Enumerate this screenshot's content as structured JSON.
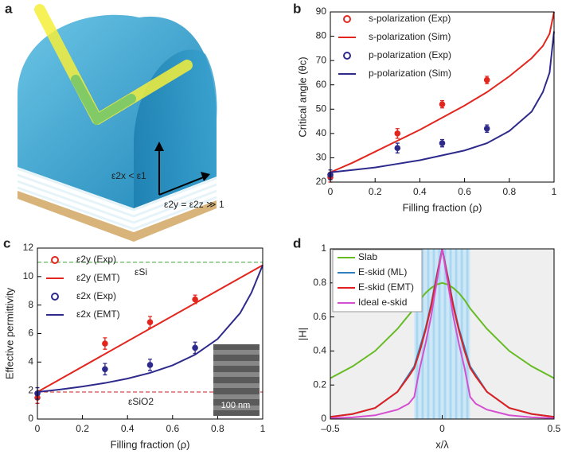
{
  "illustration": {
    "panel": "a",
    "labels": [
      "ε2x < ε1",
      "ε2y = ε2z ≫ 1"
    ]
  },
  "chart_data": [
    {
      "panel": "b",
      "type": "line",
      "xlabel": "Filling fraction (ρ)",
      "ylabel": "Critical angle (θc)",
      "xlim": [
        0,
        1
      ],
      "ylim": [
        20,
        90
      ],
      "xticks": [
        0,
        0.2,
        0.4,
        0.6,
        0.8,
        1
      ],
      "yticks": [
        20,
        30,
        40,
        50,
        60,
        70,
        80,
        90
      ],
      "legend": "upper left",
      "series": [
        {
          "name": "s-polarization (Exp)",
          "kind": "points",
          "color": "#e3261d",
          "x": [
            0,
            0.3,
            0.5,
            0.7
          ],
          "values": [
            22,
            40,
            52,
            62
          ],
          "errors": [
            2,
            2,
            1.5,
            1.5
          ]
        },
        {
          "name": "s-polarization (Sim)",
          "kind": "curve",
          "color": "#e3261d",
          "x": [
            0,
            0.1,
            0.2,
            0.3,
            0.4,
            0.5,
            0.6,
            0.7,
            0.8,
            0.9,
            0.95,
            0.98,
            1
          ],
          "values": [
            24,
            28,
            32.5,
            37,
            41.5,
            46.5,
            51.5,
            57,
            63.5,
            71,
            76,
            81,
            90
          ]
        },
        {
          "name": "p-polarization (Exp)",
          "kind": "points",
          "color": "#2e2a8c",
          "x": [
            0,
            0.3,
            0.5,
            0.7
          ],
          "values": [
            23,
            34,
            36,
            42
          ],
          "errors": [
            2,
            2,
            1.5,
            1.5
          ]
        },
        {
          "name": "p-polarization (Sim)",
          "kind": "curve",
          "color": "#2e2a8c",
          "x": [
            0,
            0.1,
            0.2,
            0.3,
            0.4,
            0.5,
            0.6,
            0.7,
            0.8,
            0.9,
            0.95,
            0.98,
            1
          ],
          "values": [
            24,
            25,
            26,
            27.5,
            29,
            31,
            33,
            36,
            41,
            49,
            57,
            65,
            82
          ]
        }
      ]
    },
    {
      "panel": "c",
      "type": "line",
      "xlabel": "Filling fraction (ρ)",
      "ylabel": "Effective permittivity",
      "xlim": [
        0,
        1
      ],
      "ylim": [
        0,
        12
      ],
      "xticks": [
        0,
        0.2,
        0.4,
        0.6,
        0.8,
        1
      ],
      "yticks": [
        0,
        2,
        4,
        6,
        8,
        10,
        12
      ],
      "legend": "upper left",
      "series": [
        {
          "name": "ε2y (Exp)",
          "kind": "points",
          "color": "#e3261d",
          "x": [
            0,
            0.3,
            0.5,
            0.7
          ],
          "values": [
            1.5,
            5.3,
            6.8,
            8.4
          ],
          "errors": [
            0.4,
            0.4,
            0.4,
            0.3
          ]
        },
        {
          "name": "ε2y (EMT)",
          "kind": "curve",
          "color": "#e3261d",
          "x": [
            0,
            1
          ],
          "values": [
            1.9,
            10.8
          ]
        },
        {
          "name": "ε2x (Exp)",
          "kind": "points",
          "color": "#2e2a8c",
          "x": [
            0,
            0.3,
            0.5,
            0.7
          ],
          "values": [
            1.8,
            3.5,
            3.8,
            5.0
          ],
          "errors": [
            0.4,
            0.4,
            0.4,
            0.4
          ]
        },
        {
          "name": "ε2x (EMT)",
          "kind": "curve",
          "color": "#2e2a8c",
          "x": [
            0,
            0.1,
            0.2,
            0.3,
            0.4,
            0.5,
            0.6,
            0.7,
            0.8,
            0.9,
            0.95,
            1
          ],
          "values": [
            1.9,
            2.07,
            2.28,
            2.53,
            2.84,
            3.24,
            3.77,
            4.52,
            5.62,
            7.44,
            8.87,
            10.8
          ]
        }
      ],
      "reference_lines": [
        {
          "value": 11,
          "label": "εSi",
          "color": "#3aa935"
        },
        {
          "value": 1.9,
          "label": "εSiO2",
          "color": "#c81e1e"
        }
      ],
      "inset_label": "100 nm"
    },
    {
      "panel": "d",
      "type": "line",
      "xlabel": "x/λ",
      "ylabel": "|H|",
      "xlim": [
        -0.5,
        0.5
      ],
      "ylim": [
        0,
        1
      ],
      "xticks": [
        {
          "value": -0.5,
          "label": "–0.5"
        },
        0,
        0.5
      ],
      "yticks": [
        0,
        0.2,
        0.4,
        0.6,
        0.8,
        1
      ],
      "legend": "upper left",
      "band": [
        -0.125,
        0.125
      ],
      "series": [
        {
          "name": "Slab",
          "kind": "curve",
          "color": "#66bb22",
          "x": [
            -0.5,
            -0.4,
            -0.3,
            -0.2,
            -0.15,
            -0.125,
            -0.1,
            -0.075,
            -0.05,
            -0.025,
            0,
            0.025,
            0.05,
            0.075,
            0.1,
            0.125,
            0.15,
            0.2,
            0.3,
            0.4,
            0.5
          ],
          "values": [
            0.24,
            0.31,
            0.4,
            0.53,
            0.61,
            0.65,
            0.7,
            0.74,
            0.77,
            0.79,
            0.8,
            0.79,
            0.77,
            0.74,
            0.7,
            0.65,
            0.61,
            0.53,
            0.4,
            0.31,
            0.24
          ]
        },
        {
          "name": "E-skid (ML)",
          "kind": "curve",
          "color": "#2f7fbf",
          "x": [
            -0.5,
            -0.4,
            -0.3,
            -0.2,
            -0.15,
            -0.125,
            -0.1,
            -0.075,
            -0.05,
            -0.025,
            0,
            0.025,
            0.05,
            0.075,
            0.1,
            0.125,
            0.15,
            0.2,
            0.3,
            0.4,
            0.5
          ],
          "values": [
            0.013,
            0.03,
            0.065,
            0.16,
            0.26,
            0.31,
            0.42,
            0.53,
            0.67,
            0.84,
            1.0,
            0.84,
            0.67,
            0.53,
            0.42,
            0.31,
            0.26,
            0.16,
            0.065,
            0.03,
            0.013
          ]
        },
        {
          "name": "E-skid (EMT)",
          "kind": "curve",
          "color": "#e02020",
          "x": [
            -0.5,
            -0.4,
            -0.3,
            -0.2,
            -0.15,
            -0.125,
            -0.1,
            -0.075,
            -0.05,
            -0.025,
            0,
            0.025,
            0.05,
            0.075,
            0.1,
            0.125,
            0.15,
            0.2,
            0.3,
            0.4,
            0.5
          ],
          "values": [
            0.013,
            0.03,
            0.065,
            0.16,
            0.25,
            0.3,
            0.4,
            0.52,
            0.66,
            0.83,
            1.0,
            0.83,
            0.66,
            0.52,
            0.4,
            0.3,
            0.25,
            0.16,
            0.065,
            0.03,
            0.013
          ]
        },
        {
          "name": "Ideal e-skid",
          "kind": "curve",
          "color": "#d44fd0",
          "x": [
            -0.5,
            -0.4,
            -0.3,
            -0.2,
            -0.15,
            -0.125,
            -0.1,
            -0.075,
            -0.05,
            -0.025,
            0,
            0.025,
            0.05,
            0.075,
            0.1,
            0.125,
            0.15,
            0.2,
            0.3,
            0.4,
            0.5
          ],
          "values": [
            0.005,
            0.01,
            0.022,
            0.055,
            0.09,
            0.13,
            0.3,
            0.44,
            0.6,
            0.8,
            1.0,
            0.8,
            0.6,
            0.44,
            0.3,
            0.13,
            0.09,
            0.055,
            0.022,
            0.01,
            0.005
          ]
        }
      ]
    }
  ]
}
